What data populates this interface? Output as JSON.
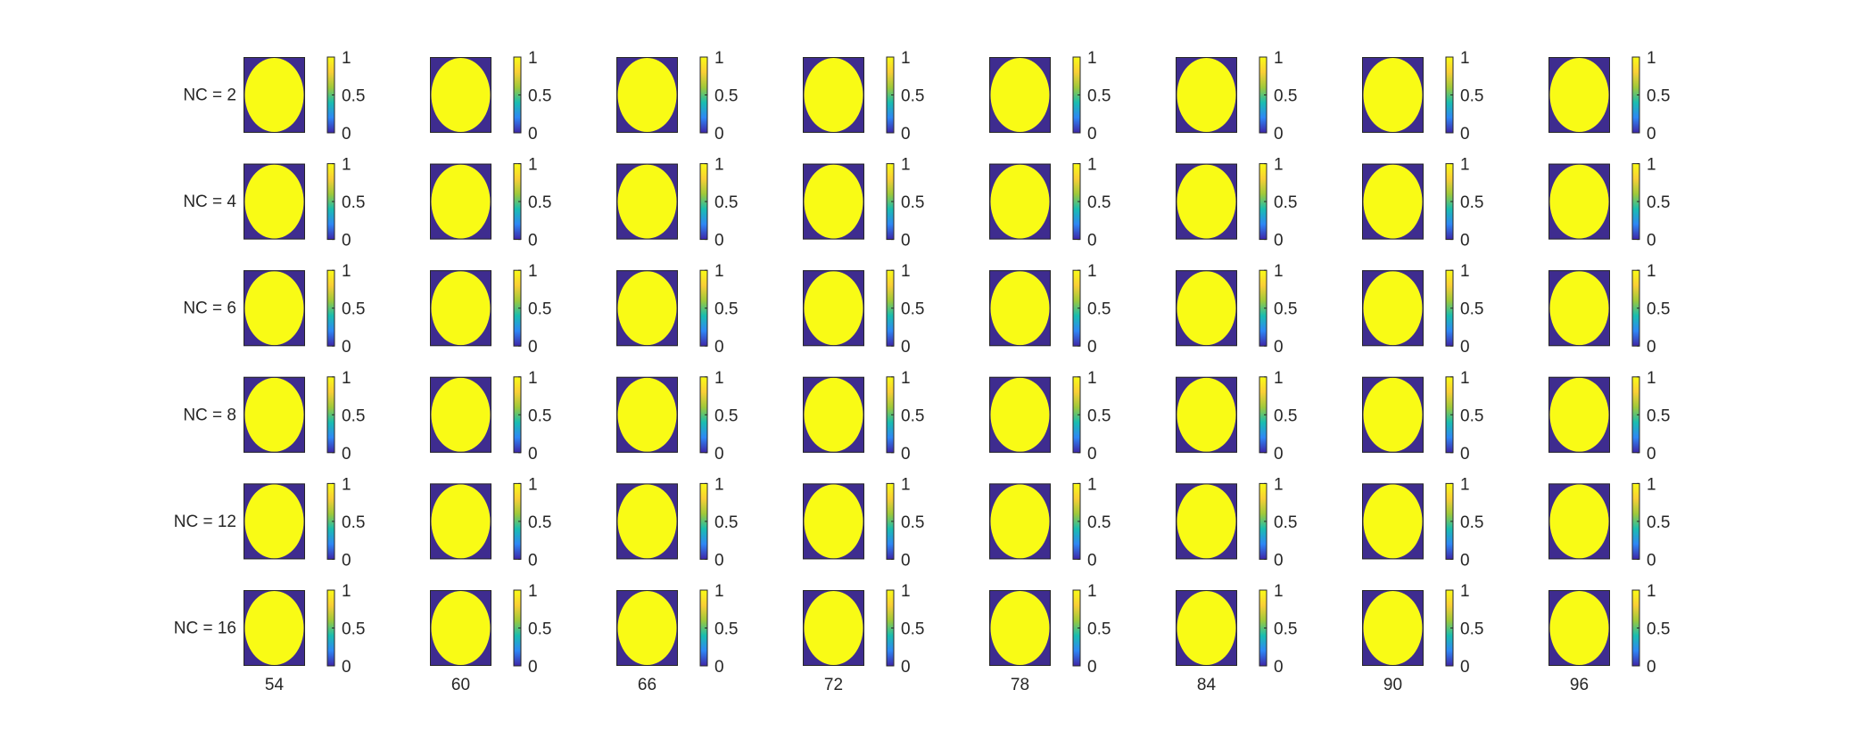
{
  "chart_data": {
    "type": "heatmap",
    "title": "",
    "row_labels": [
      "NC = 2",
      "NC = 4",
      "NC = 6",
      "NC = 8",
      "NC = 12",
      "NC = 16"
    ],
    "column_labels": [
      "54",
      "60",
      "66",
      "72",
      "78",
      "84",
      "90",
      "96"
    ],
    "image_content": "binary elliptical mask: value 1 inside ellipse, 0 outside",
    "value_range": [
      0,
      1
    ],
    "colorbar": {
      "ticks": [
        "0",
        "0.5",
        "1"
      ],
      "colormap": "parula",
      "colors": [
        "#3e26a8",
        "#2e87f5",
        "#19bdb0",
        "#9fc93a",
        "#f9cf36",
        "#f9fb15"
      ]
    },
    "colors": {
      "background_value_color": "#3e2c8f",
      "mask_value_color": "#f9fb15",
      "axes_border": "#262626"
    }
  }
}
